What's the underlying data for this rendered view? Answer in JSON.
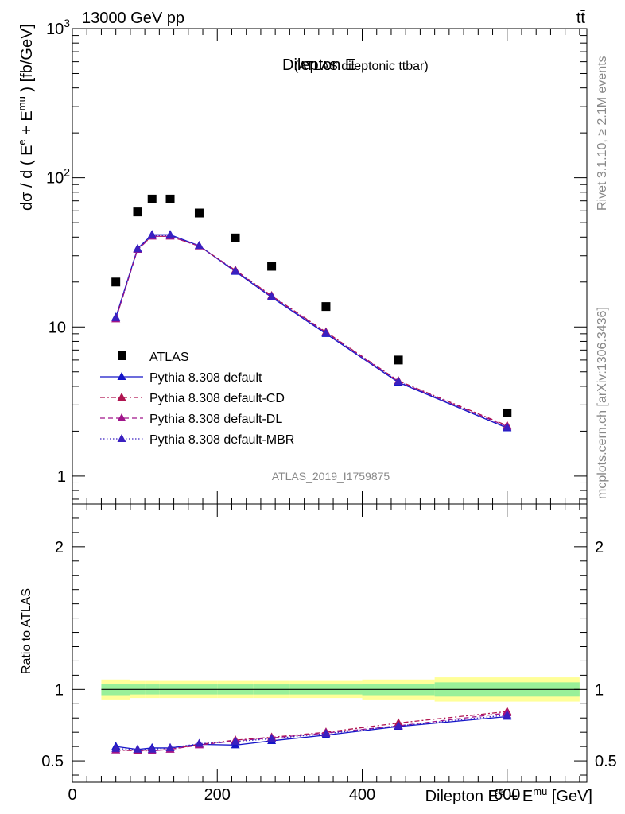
{
  "header": {
    "left": "13000 GeV pp",
    "right": "tt̄"
  },
  "side": {
    "rivet": "Rivet 3.1.10, ≥ 2.1M events",
    "mcplots": "mcplots.cern.ch [arXiv:1306.3436]"
  },
  "chart_data": [
    {
      "type": "scatter",
      "panel": "main",
      "title": "Dilepton E",
      "subtitle": "(ATLAS dileptonic ttbar)",
      "ylabel": "dσ / d ( E^e + E^mu ) [fb/GeV]",
      "yscale": "log",
      "ylim": [
        0.65,
        1000
      ],
      "xlim": [
        0,
        710
      ],
      "ytick_labels": [
        "1",
        "10",
        "10^2",
        "10^3"
      ],
      "watermark": "ATLAS_2019_I1759875",
      "legend_position": "center-left",
      "x": [
        60,
        90,
        110,
        135,
        175,
        225,
        275,
        350,
        450,
        600
      ],
      "series": [
        {
          "name": "ATLAS",
          "style": "square",
          "color": "#000000",
          "values": [
            20,
            59,
            72,
            72,
            58,
            39.5,
            25.5,
            13.7,
            6.0,
            2.65
          ]
        },
        {
          "name": "Pythia 8.308 default",
          "style": "solid",
          "color": "#1515c8",
          "values": [
            11.6,
            33.5,
            41.5,
            41.5,
            35.0,
            23.5,
            15.8,
            9.0,
            4.25,
            2.1
          ]
        },
        {
          "name": "Pythia 8.308 default-CD",
          "style": "dashdot",
          "color": "#b01550",
          "values": [
            11.3,
            33.2,
            40.5,
            40.5,
            34.8,
            24.0,
            16.2,
            9.25,
            4.35,
            2.18
          ]
        },
        {
          "name": "Pythia 8.308 default-DL",
          "style": "dashed",
          "color": "#a0158a",
          "values": [
            11.3,
            33.0,
            40.5,
            40.5,
            34.8,
            23.8,
            16.0,
            9.15,
            4.3,
            2.15
          ]
        },
        {
          "name": "Pythia 8.308 default-MBR",
          "style": "dotted",
          "color": "#3a20c0",
          "values": [
            11.5,
            33.3,
            41.0,
            41.0,
            35.0,
            23.7,
            16.0,
            9.1,
            4.3,
            2.12
          ]
        }
      ]
    },
    {
      "type": "line",
      "panel": "ratio",
      "ylabel": "Ratio to ATLAS",
      "xlabel": "Dilepton E^e + E^mu [GeV]",
      "ylim": [
        0.35,
        2.3
      ],
      "xlim": [
        0,
        710
      ],
      "xtick_labels": [
        "0",
        "200",
        "400",
        "600"
      ],
      "ytick_labels": [
        "0.5",
        "1",
        "2"
      ],
      "bins": [
        40,
        80,
        100,
        120,
        150,
        200,
        250,
        300,
        400,
        500,
        700
      ],
      "band_green_halfwidth": [
        0.04,
        0.035,
        0.035,
        0.035,
        0.035,
        0.035,
        0.035,
        0.035,
        0.04,
        0.05
      ],
      "band_yellow_halfwidth": [
        0.07,
        0.06,
        0.06,
        0.06,
        0.06,
        0.06,
        0.06,
        0.06,
        0.07,
        0.085
      ],
      "x": [
        60,
        90,
        110,
        135,
        175,
        225,
        275,
        350,
        450,
        600
      ],
      "series": [
        {
          "name": "Pythia 8.308 default",
          "color": "#1515c8",
          "values": [
            0.6,
            0.58,
            0.59,
            0.59,
            0.615,
            0.61,
            0.64,
            0.68,
            0.74,
            0.81
          ]
        },
        {
          "name": "Pythia 8.308 default-CD",
          "color": "#b01550",
          "values": [
            0.575,
            0.57,
            0.57,
            0.58,
            0.615,
            0.645,
            0.665,
            0.7,
            0.765,
            0.845
          ]
        },
        {
          "name": "Pythia 8.308 default-DL",
          "color": "#a0158a",
          "values": [
            0.575,
            0.575,
            0.57,
            0.58,
            0.61,
            0.64,
            0.66,
            0.695,
            0.745,
            0.835
          ]
        },
        {
          "name": "Pythia 8.308 default-MBR",
          "color": "#3a20c0",
          "values": [
            0.585,
            0.58,
            0.58,
            0.59,
            0.62,
            0.635,
            0.655,
            0.69,
            0.745,
            0.82
          ]
        }
      ]
    }
  ]
}
